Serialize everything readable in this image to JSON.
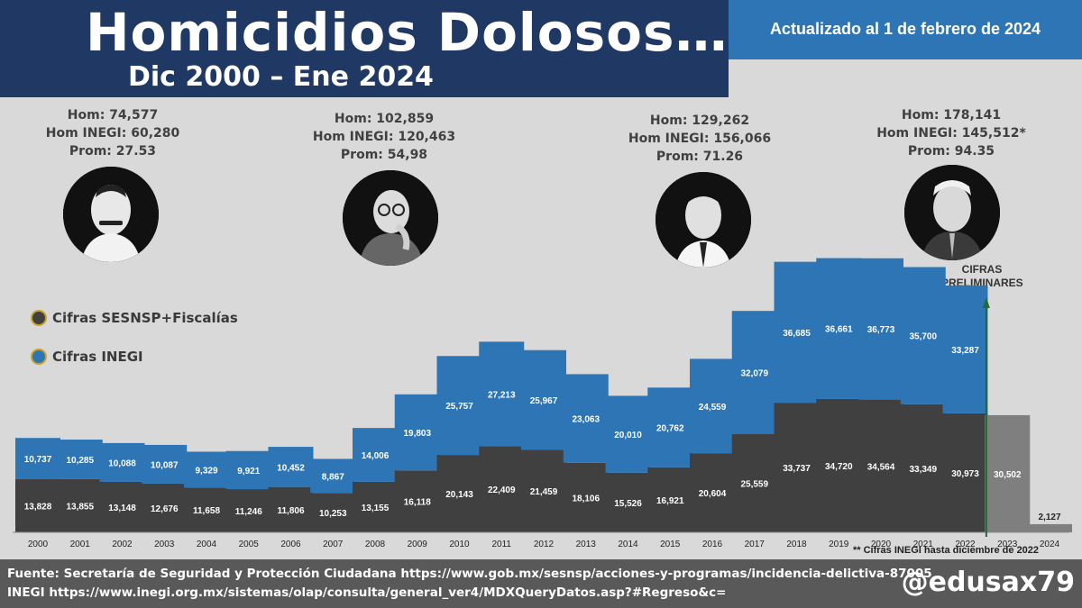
{
  "header": {
    "title": "Homicidios Dolosos…",
    "subtitle": "Dic 2000 – Ene 2024",
    "updated": "Actualizado al 1 de febrero de 2024"
  },
  "presidents": [
    {
      "line1": "Hom: 74,577",
      "line2": "Hom INEGI: 60,280",
      "line3": "Prom: 27.53"
    },
    {
      "line1": "Hom: 102,859",
      "line2": "Hom INEGI: 120,463",
      "line3": "Prom: 54,98"
    },
    {
      "line1": "Hom: 129,262",
      "line2": "Hom INEGI: 156,066",
      "line3": "Prom: 71.26"
    },
    {
      "line1": "Hom: 178,141",
      "line2": "Hom INEGI: 145,512*",
      "line3": "Prom: 94.35"
    }
  ],
  "legend": {
    "sesnsp": "Cifras SESNSP+Fiscalías",
    "inegi": "Cifras INEGI"
  },
  "annotations": {
    "preliminary": "CIFRAS PRELIMINARES",
    "footnote": "** Cifras INEGI hasta diciembre de 2022"
  },
  "footer": {
    "source1": "Fuente: Secretaría de Seguridad y Protección Ciudadana https://www.gob.mx/sesnsp/acciones-y-programas/incidencia-delictiva-87005",
    "source2": "INEGI https://www.inegi.org.mx/sistemas/olap/consulta/general_ver4/MDXQueryDatos.asp?#Regreso&c=",
    "handle": "@edusax79"
  },
  "colors": {
    "sesnsp": "#404040",
    "inegi": "#2e75b6",
    "preliminary": "#7f7f7f",
    "title_bg": "#203864"
  },
  "chart_data": {
    "type": "bar",
    "title": "Homicidios Dolosos… Dic 2000 – Ene 2024",
    "categories": [
      "2000",
      "2001",
      "2002",
      "2003",
      "2004",
      "2005",
      "2006",
      "2007",
      "2008",
      "2009",
      "2010",
      "2011",
      "2012",
      "2013",
      "2014",
      "2015",
      "2016",
      "2017",
      "2018",
      "2019",
      "2020",
      "2021",
      "2022",
      "2023",
      "2024"
    ],
    "series": [
      {
        "name": "Cifras SESNSP+Fiscalías",
        "values": [
          13828,
          13855,
          13148,
          12676,
          11658,
          11246,
          11806,
          10253,
          13155,
          16118,
          20143,
          22409,
          21459,
          18106,
          15526,
          16921,
          20604,
          25559,
          33737,
          34720,
          34564,
          33349,
          30973,
          30502,
          2127
        ],
        "labels": [
          "13,828",
          "13,855",
          "13,148",
          "12,676",
          "11,658",
          "11,246",
          "11,806",
          "10,253",
          "13,155",
          "16,118",
          "20,143",
          "22,409",
          "21,459",
          "18,106",
          "15,526",
          "16,921",
          "20,604",
          "25,559",
          "33,737",
          "34,720",
          "34,564",
          "33,349",
          "30,973",
          "30,502",
          "2,127"
        ]
      },
      {
        "name": "Cifras INEGI",
        "values": [
          10737,
          10285,
          10088,
          10087,
          9329,
          9921,
          10452,
          8867,
          14006,
          19803,
          25757,
          27213,
          25967,
          23063,
          20010,
          20762,
          24559,
          32079,
          36685,
          36661,
          36773,
          35700,
          33287,
          null,
          null
        ],
        "labels": [
          "10,737",
          "10,285",
          "10,088",
          "10,087",
          "9,329",
          "9,921",
          "10,452",
          "8,867",
          "14,006",
          "19,803",
          "25,757",
          "27,213",
          "25,967",
          "23,063",
          "20,010",
          "20,762",
          "24,559",
          "32,079",
          "36,685",
          "36,661",
          "36,773",
          "35,700",
          "33,287",
          "",
          ""
        ]
      }
    ],
    "stacked": true,
    "ylim": [
      0,
      75000
    ],
    "xlabel": "",
    "ylabel": ""
  }
}
